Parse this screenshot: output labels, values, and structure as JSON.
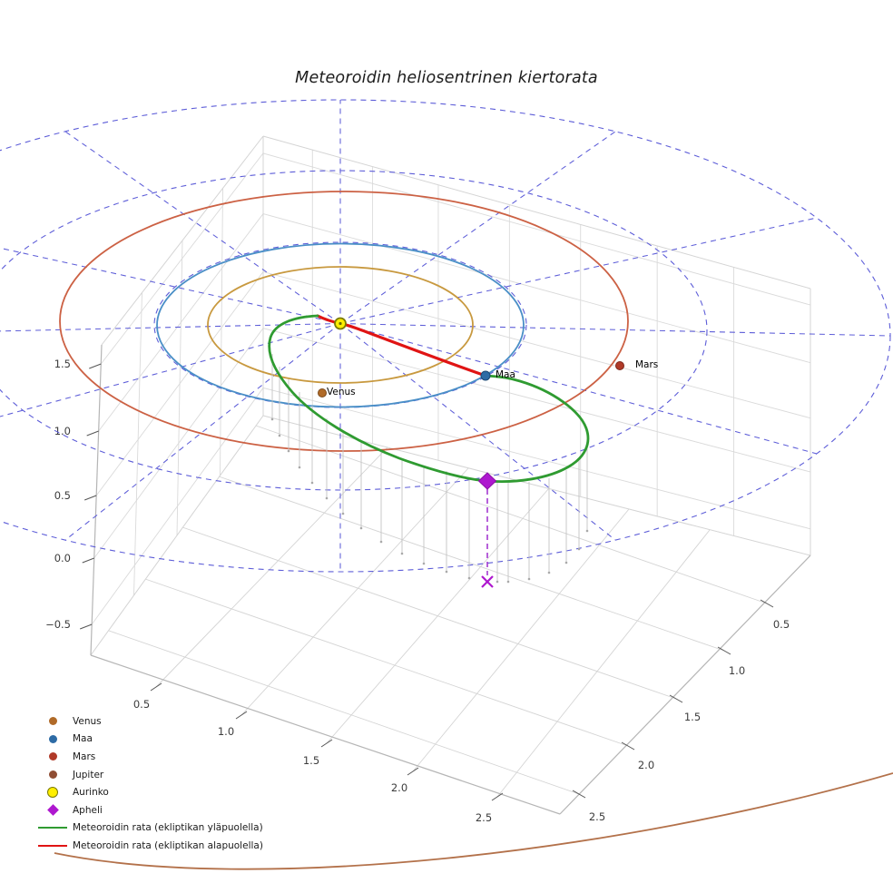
{
  "title": "Meteoroidin heliosentrinen kiertorata",
  "chart_data": {
    "type": "3d_orbit_plot",
    "axes": {
      "x_ticks": [
        "0.5",
        "1.0",
        "1.5",
        "2.0",
        "2.5"
      ],
      "y_ticks": [
        "0.5",
        "1.0",
        "1.5",
        "2.0",
        "2.5"
      ],
      "z_ticks": [
        "1.5",
        "1.0",
        "0.5",
        "0.0",
        "−0.5"
      ],
      "grid": true
    },
    "polar_grid": {
      "radii_au": [
        1,
        2,
        3
      ],
      "spoke_step_deg": 30,
      "color": "#5d5dd8"
    },
    "orbits": [
      {
        "name": "Venus",
        "radius_au": 0.72,
        "color": "#c8993f"
      },
      {
        "name": "Maa",
        "radius_au": 1.0,
        "color": "#4a8fc7"
      },
      {
        "name": "Mars",
        "radius_au": 1.52,
        "color": "#cc6144"
      },
      {
        "name": "Jupiter",
        "radius_au": 5.2,
        "color": "#b3714a"
      }
    ],
    "planet_markers": [
      {
        "label": "Venus",
        "color": "#b06a28"
      },
      {
        "label": "Maa",
        "color": "#2d6ba5"
      },
      {
        "label": "Mars",
        "color": "#b03a28"
      }
    ],
    "sun": {
      "label": "Aurinko",
      "fill": "#ffef00",
      "edge": "#7a7a00"
    },
    "aphelion": {
      "label": "Apheli",
      "color": "#ae18cf",
      "drop_line_color": "#a53ad1"
    },
    "meteoroid": {
      "above_label": "Meteoroidin rata (ekliptikan yläpuolella)",
      "below_label": "Meteoroidin rata (ekliptikan alapuolella)",
      "above_color": "#2f9b31",
      "below_color": "#e01414"
    }
  },
  "legend": {
    "items": [
      {
        "label": "Venus",
        "type": "dot",
        "color": "#b06a28"
      },
      {
        "label": "Maa",
        "type": "dot",
        "color": "#2d6ba5"
      },
      {
        "label": "Mars",
        "type": "dot",
        "color": "#b03a28"
      },
      {
        "label": "Jupiter",
        "type": "dot",
        "color": "#8f4d33"
      },
      {
        "label": "Aurinko",
        "type": "circle",
        "color": "#ffef00",
        "edge": "#7a7a00"
      },
      {
        "label": "Apheli",
        "type": "diamond",
        "color": "#ae18cf"
      },
      {
        "label": "Meteoroidin rata (ekliptikan yläpuolella)",
        "type": "line",
        "color": "#2f9b31"
      },
      {
        "label": "Meteoroidin rata (ekliptikan alapuolella)",
        "type": "line",
        "color": "#e01414"
      }
    ]
  }
}
